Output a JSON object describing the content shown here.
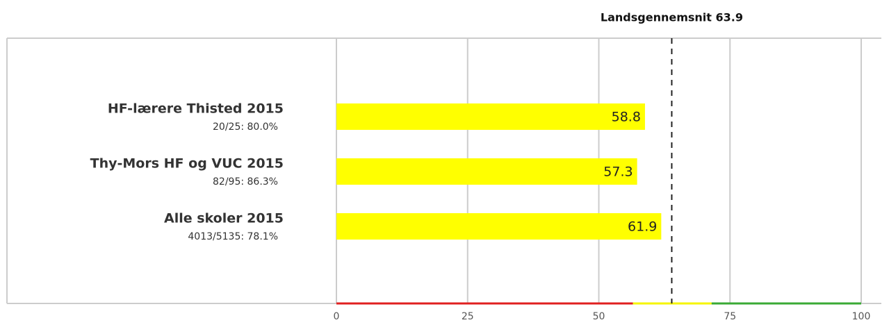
{
  "chart_data": {
    "type": "bar",
    "orientation": "horizontal",
    "categories": [
      {
        "title": "HF-lærere Thisted 2015",
        "subtitle": "20/25: 80.0%"
      },
      {
        "title": "Thy-Mors HF og VUC 2015",
        "subtitle": "82/95: 86.3%"
      },
      {
        "title": "Alle skoler 2015",
        "subtitle": "4013/5135: 78.1%"
      }
    ],
    "values": [
      58.8,
      57.3,
      61.9
    ],
    "value_labels": [
      "58.8",
      "57.3",
      "61.9"
    ],
    "xlim": [
      0,
      100
    ],
    "xticks": [
      0,
      25,
      50,
      75,
      100
    ],
    "xtick_labels": [
      "0",
      "25",
      "50",
      "75",
      "100"
    ],
    "grid": true,
    "reference_line": {
      "label": "Landsgennemsnit 63.9",
      "value": 63.9,
      "style": "dashed"
    },
    "threshold_bands": [
      {
        "from": 0,
        "to": 56.5,
        "color": "#e02020"
      },
      {
        "from": 56.5,
        "to": 71.5,
        "color": "#f5f500"
      },
      {
        "from": 71.5,
        "to": 100,
        "color": "#3aaa35"
      }
    ],
    "bar_color": "#ffff00"
  }
}
